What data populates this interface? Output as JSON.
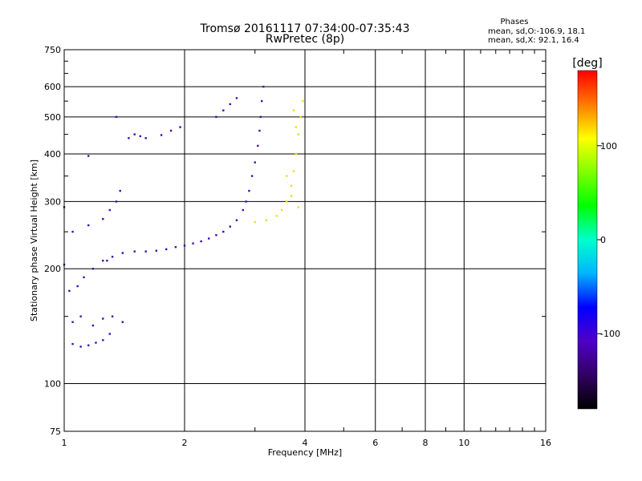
{
  "chart_data": {
    "type": "scatter",
    "title": "Tromsø 20161117 07:34:00-07:35:43",
    "subtitle": "RwPretec (8p)",
    "xlabel": "Frequency [MHz]",
    "ylabel": "Stationary phase Virtual Height [km]",
    "x_scale": "log",
    "y_scale": "log",
    "xlim": [
      1,
      16
    ],
    "ylim": [
      75,
      750
    ],
    "x_ticks": [
      1,
      2,
      4,
      6,
      8,
      10,
      16
    ],
    "y_ticks": [
      75,
      100,
      200,
      300,
      400,
      500,
      600,
      750
    ],
    "x_minor_ticks": [
      3,
      5,
      7,
      9,
      11,
      12,
      13,
      14,
      15
    ],
    "y_minor_ticks": [
      150,
      250,
      350,
      450,
      550,
      650,
      700
    ],
    "grid": true,
    "stats": {
      "heading": "Phases",
      "line_o": "mean, sd,O:-106.9, 18.1",
      "line_x": "mean, sd,X:  92.1, 16.4"
    },
    "colorbar": {
      "label": "[deg]",
      "range": [
        -180,
        180
      ],
      "ticks": [
        100,
        0,
        -100
      ],
      "colors": [
        "#ff0000",
        "#ff7a00",
        "#ffff00",
        "#7fff00",
        "#00ff00",
        "#00ffcc",
        "#00b4ff",
        "#0000ff",
        "#5000c8",
        "#320064",
        "#000000"
      ]
    },
    "series": [
      {
        "mode": "O",
        "color": "#3a10b0",
        "points": [
          [
            1.05,
            127
          ],
          [
            1.1,
            125
          ],
          [
            1.15,
            126
          ],
          [
            1.2,
            128
          ],
          [
            1.25,
            130
          ],
          [
            1.3,
            135
          ],
          [
            1.05,
            145
          ],
          [
            1.1,
            150
          ],
          [
            1.18,
            142
          ],
          [
            1.25,
            148
          ],
          [
            1.32,
            150
          ],
          [
            1.4,
            145
          ],
          [
            1.03,
            175
          ],
          [
            1.08,
            180
          ],
          [
            1.12,
            190
          ],
          [
            1.18,
            200
          ],
          [
            1.25,
            210
          ],
          [
            1.32,
            215
          ],
          [
            1.4,
            220
          ],
          [
            1.5,
            222
          ],
          [
            1.6,
            222
          ],
          [
            1.7,
            223
          ],
          [
            1.8,
            225
          ],
          [
            1.9,
            228
          ],
          [
            2.0,
            230
          ],
          [
            2.1,
            233
          ],
          [
            2.2,
            236
          ],
          [
            2.3,
            240
          ],
          [
            2.4,
            245
          ],
          [
            1.05,
            250
          ],
          [
            1.15,
            260
          ],
          [
            1.25,
            270
          ],
          [
            1.3,
            285
          ],
          [
            1.35,
            300
          ],
          [
            1.38,
            320
          ],
          [
            1.45,
            440
          ],
          [
            1.5,
            450
          ],
          [
            1.55,
            445
          ],
          [
            1.6,
            440
          ],
          [
            1.75,
            448
          ],
          [
            1.85,
            460
          ],
          [
            1.95,
            470
          ],
          [
            2.5,
            250
          ],
          [
            2.6,
            258
          ],
          [
            2.7,
            268
          ],
          [
            2.8,
            285
          ],
          [
            2.85,
            300
          ],
          [
            2.9,
            320
          ],
          [
            2.95,
            350
          ],
          [
            3.0,
            380
          ],
          [
            3.05,
            420
          ],
          [
            3.08,
            460
          ],
          [
            3.1,
            500
          ],
          [
            3.12,
            550
          ],
          [
            3.15,
            600
          ],
          [
            2.4,
            500
          ],
          [
            2.5,
            520
          ],
          [
            2.6,
            540
          ],
          [
            2.7,
            560
          ],
          [
            1.35,
            500
          ],
          [
            1.0,
            290
          ],
          [
            1.28,
            210
          ],
          [
            1.0,
            205
          ],
          [
            1.15,
            395
          ]
        ]
      },
      {
        "mode": "X",
        "color": "#f2dc10",
        "points": [
          [
            3.0,
            265
          ],
          [
            3.2,
            268
          ],
          [
            3.4,
            275
          ],
          [
            3.5,
            285
          ],
          [
            3.6,
            300
          ],
          [
            3.7,
            330
          ],
          [
            3.75,
            360
          ],
          [
            3.8,
            400
          ],
          [
            3.85,
            450
          ],
          [
            3.9,
            500
          ],
          [
            3.95,
            550
          ],
          [
            3.85,
            290
          ],
          [
            3.7,
            310
          ],
          [
            3.6,
            350
          ],
          [
            3.8,
            470
          ],
          [
            3.75,
            520
          ]
        ]
      }
    ]
  }
}
